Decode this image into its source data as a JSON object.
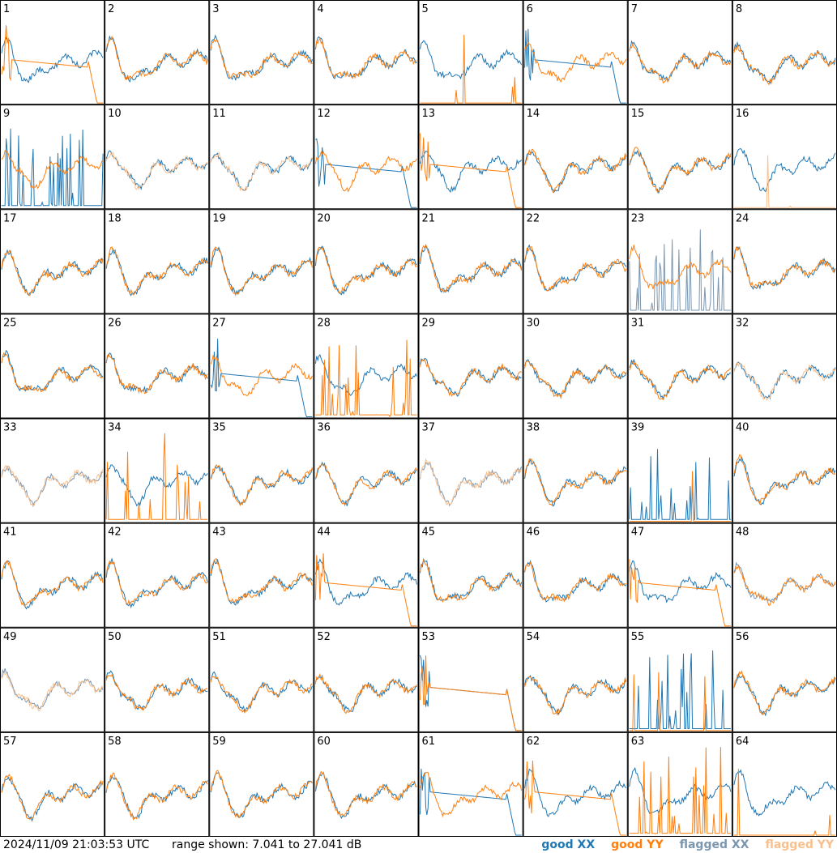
{
  "chart_data": {
    "type": "line",
    "title": "",
    "grid": {
      "rows": 8,
      "cols": 8
    },
    "tiles": [
      1,
      2,
      3,
      4,
      5,
      6,
      7,
      8,
      9,
      10,
      11,
      12,
      13,
      14,
      15,
      16,
      17,
      18,
      19,
      20,
      21,
      22,
      23,
      24,
      25,
      26,
      27,
      28,
      29,
      30,
      31,
      32,
      33,
      34,
      35,
      36,
      37,
      38,
      39,
      40,
      41,
      42,
      43,
      44,
      45,
      46,
      47,
      48,
      49,
      50,
      51,
      52,
      53,
      54,
      55,
      56,
      57,
      58,
      59,
      60,
      61,
      62,
      63,
      64
    ],
    "flagged_xx": [
      23,
      33,
      37,
      48,
      49
    ],
    "flagged_yy": [
      10,
      11,
      16,
      32,
      33,
      37,
      49
    ],
    "range": {
      "min_db": 7.041,
      "max_db": 27.041
    },
    "series": [
      {
        "name": "good XX",
        "color": "#1f77b4"
      },
      {
        "name": "good YY",
        "color": "#ff7f0e"
      },
      {
        "name": "flagged XX",
        "color": "#7a96b0"
      },
      {
        "name": "flagged YY",
        "color": "#f9c08e"
      }
    ]
  },
  "footer": {
    "timestamp": "2024/11/09 21:03:53 UTC",
    "range_text": "range shown: 7.041 to 27.041 dB"
  },
  "legend": {
    "good_xx": "good XX",
    "good_yy": "good YY",
    "flagged_xx": "flagged XX",
    "flagged_yy": "flagged YY"
  }
}
